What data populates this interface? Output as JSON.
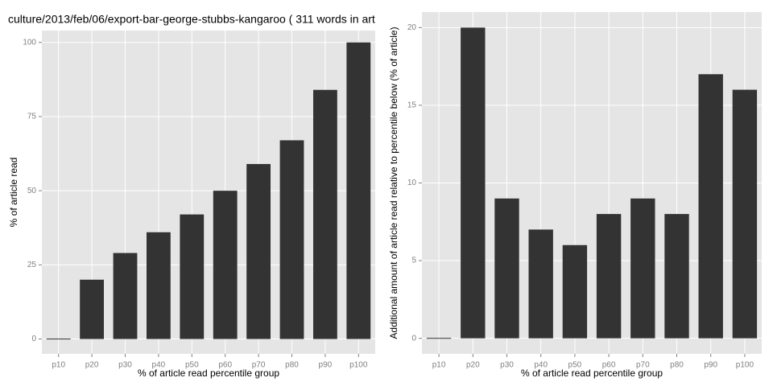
{
  "chart_data": [
    {
      "type": "bar",
      "title": "culture/2013/feb/06/export-bar-george-stubbs-kangaroo ( 311 words in art",
      "x_label": "% of article read percentile group",
      "y_label": "% of article read",
      "categories": [
        "p10",
        "p20",
        "p30",
        "p40",
        "p50",
        "p60",
        "p70",
        "p80",
        "p90",
        "p100"
      ],
      "values": [
        0,
        20,
        29,
        36,
        42,
        50,
        59,
        67,
        84,
        100
      ],
      "color": "#333333",
      "ylim": [
        -5,
        104
      ],
      "yticks": [
        0,
        25,
        50,
        75,
        100
      ],
      "grid": true
    },
    {
      "type": "bar",
      "x_label": "% of article read percentile group",
      "y_label": "Additional amount of article read relative to percentile below (% of article)",
      "categories": [
        "p10",
        "p20",
        "p30",
        "p40",
        "p50",
        "p60",
        "p70",
        "p80",
        "p90",
        "p100"
      ],
      "values": [
        0,
        20,
        9,
        7,
        6,
        8,
        9,
        8,
        17,
        16
      ],
      "color": "#333333",
      "ylim": [
        -1,
        21
      ],
      "yticks": [
        0,
        5,
        10,
        15,
        20
      ],
      "grid": true
    }
  ]
}
